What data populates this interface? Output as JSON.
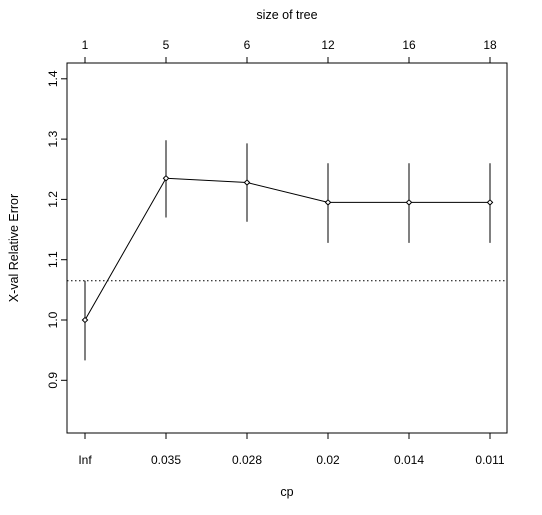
{
  "chart_data": {
    "type": "line",
    "xlabel": "cp",
    "top_axis_label": "size of tree",
    "ylabel": "X-val Relative Error",
    "x_tick_labels": [
      "Inf",
      "0.035",
      "0.028",
      "0.02",
      "0.014",
      "0.011"
    ],
    "top_tick_labels": [
      "1",
      "5",
      "6",
      "12",
      "16",
      "18"
    ],
    "y_ticks": [
      "0.9",
      "1.0",
      "1.1",
      "1.2",
      "1.3",
      "1.4"
    ],
    "ylim": [
      0.81,
      1.42
    ],
    "grid": false,
    "series": [
      {
        "values": [
          1.0,
          1.235,
          1.228,
          1.195,
          1.195,
          1.195
        ],
        "error_low": [
          0.933,
          1.17,
          1.163,
          1.128,
          1.128,
          1.128
        ],
        "error_high": [
          1.065,
          1.298,
          1.293,
          1.26,
          1.26,
          1.26
        ]
      }
    ],
    "reference_line": {
      "y": 1.065,
      "style": "dotted"
    }
  }
}
